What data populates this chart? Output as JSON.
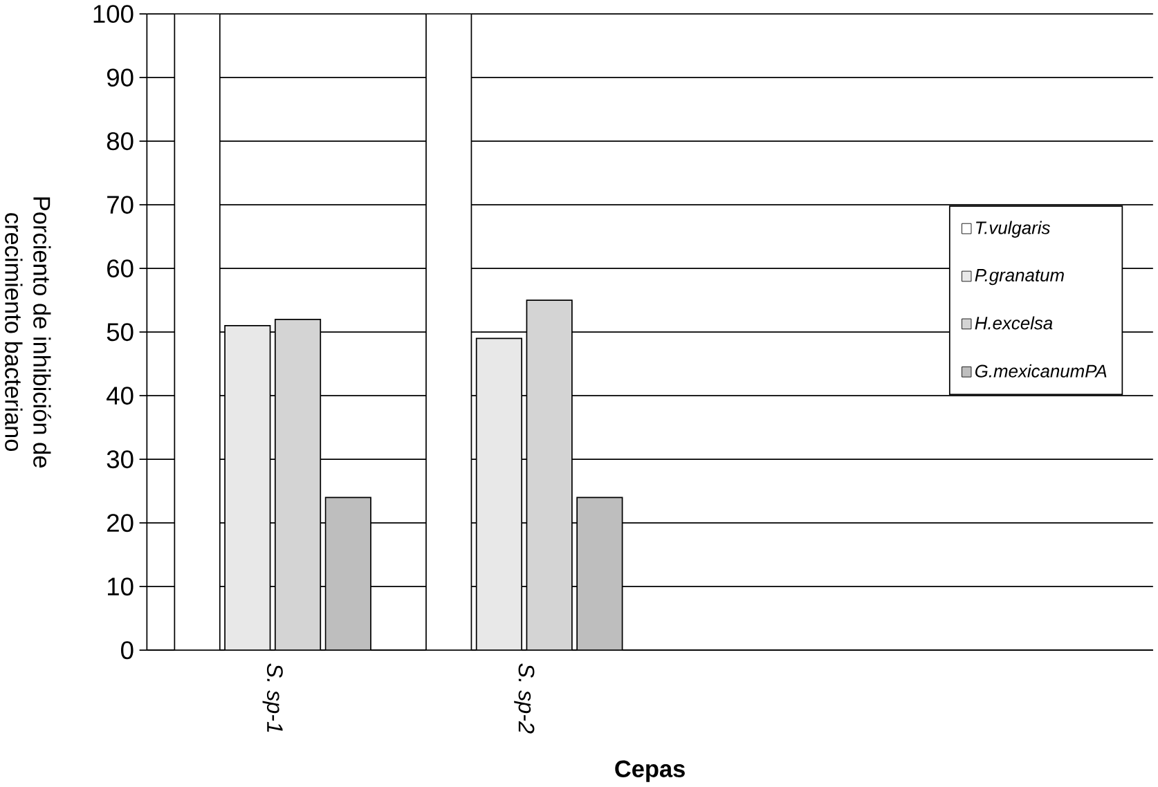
{
  "chart_data": {
    "type": "bar",
    "xlabel": "Cepas",
    "ylabel": "Porciento de inhibición de crecimiento bacteriano",
    "categories": [
      "S. sp-1",
      "S. sp-2",
      null,
      null
    ],
    "series": [
      {
        "name": "T.vulgaris",
        "color": "#ffffff",
        "values": [
          100,
          100,
          null,
          null
        ]
      },
      {
        "name": "P.granatum",
        "color": "#e8e8e8",
        "values": [
          51,
          49,
          null,
          null
        ]
      },
      {
        "name": "H.excelsa",
        "color": "#d4d4d4",
        "values": [
          52,
          55,
          null,
          null
        ]
      },
      {
        "name": "G.mexicanumPA",
        "color": "#bebebe",
        "values": [
          24,
          24,
          null,
          null
        ]
      }
    ],
    "ylim": [
      0,
      100
    ],
    "yticks": [
      0,
      10,
      20,
      30,
      40,
      50,
      60,
      70,
      80,
      90,
      100
    ],
    "grid": "y",
    "legend": "right"
  }
}
